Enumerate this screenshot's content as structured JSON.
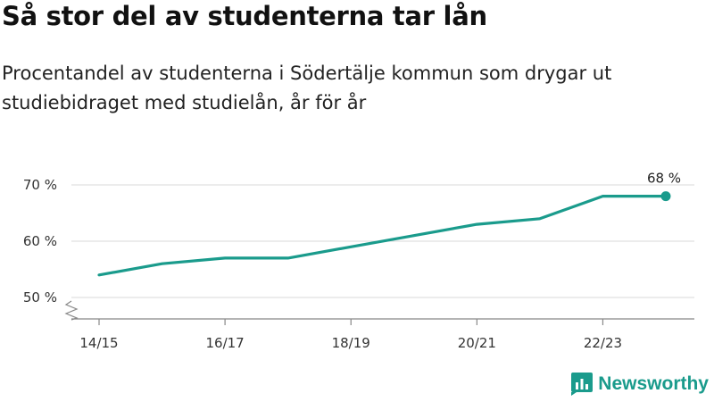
{
  "header": {
    "title": "Så stor del av studenterna tar lån",
    "subtitle": "Procentandel av studenterna i Södertälje kommun som drygar ut studiebidraget med studielån, år för år"
  },
  "brand": {
    "name": "Newsworthy",
    "icon": "bar-chart-logo-icon",
    "color": "#1a9b8c"
  },
  "chart_data": {
    "type": "line",
    "title": "Så stor del av studenterna tar lån",
    "subtitle": "Procentandel av studenterna i Södertälje kommun som drygar ut studiebidraget med studielån, år för år",
    "x": [
      "14/15",
      "15/16",
      "16/17",
      "17/18",
      "18/19",
      "19/20",
      "20/21",
      "21/22",
      "22/23",
      "23/24"
    ],
    "xticks": [
      "14/15",
      "16/17",
      "18/19",
      "20/21",
      "22/23"
    ],
    "series": [
      {
        "values": [
          54,
          56,
          57,
          57,
          59,
          61,
          63,
          64,
          68,
          68
        ],
        "color": "#1a9b8c"
      }
    ],
    "yticks": [
      50,
      60,
      70
    ],
    "ytick_labels": [
      "50 %",
      "60 %",
      "70 %"
    ],
    "ylim": [
      50,
      72
    ],
    "y_axis_break": true,
    "grid": true,
    "annotation": {
      "label": "68 %",
      "point": "23/24"
    }
  }
}
